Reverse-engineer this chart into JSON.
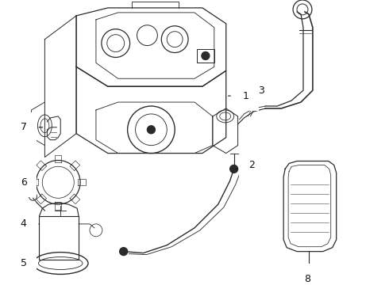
{
  "bg_color": "#ffffff",
  "line_color": "#2a2a2a",
  "label_color": "#111111",
  "lw": 0.9
}
